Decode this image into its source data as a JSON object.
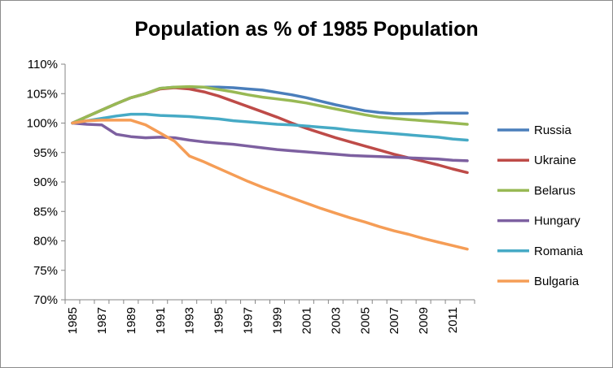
{
  "chart_data": {
    "type": "line",
    "title": "Population as % of 1985 Population",
    "xlabel": "",
    "ylabel": "",
    "x": [
      1985,
      1986,
      1987,
      1988,
      1989,
      1990,
      1991,
      1992,
      1993,
      1994,
      1995,
      1996,
      1997,
      1998,
      1999,
      2000,
      2001,
      2002,
      2003,
      2004,
      2005,
      2006,
      2007,
      2008,
      2009,
      2010,
      2011,
      2012
    ],
    "x_tick_labels": [
      "1985",
      "1987",
      "1989",
      "1991",
      "1993",
      "1995",
      "1997",
      "1999",
      "2001",
      "2003",
      "2005",
      "2007",
      "2009",
      "2011"
    ],
    "y_tick_labels": [
      "70%",
      "75%",
      "80%",
      "85%",
      "90%",
      "95%",
      "100%",
      "105%",
      "110%"
    ],
    "ylim": [
      70,
      110
    ],
    "y_unit": "%",
    "grid": "none",
    "legend_position": "right",
    "series": [
      {
        "name": "Russia",
        "color": "#4a7ebb",
        "values": [
          100,
          101.1,
          102.2,
          103.3,
          104.3,
          105.0,
          105.9,
          106.1,
          106.1,
          106.1,
          106.1,
          106.0,
          105.8,
          105.6,
          105.2,
          104.8,
          104.3,
          103.7,
          103.1,
          102.6,
          102.1,
          101.8,
          101.6,
          101.6,
          101.6,
          101.7,
          101.7,
          101.7
        ]
      },
      {
        "name": "Ukraine",
        "color": "#be4b48",
        "values": [
          100,
          101.1,
          102.2,
          103.3,
          104.3,
          105.0,
          105.8,
          106.0,
          105.8,
          105.3,
          104.6,
          103.7,
          102.8,
          101.9,
          101.0,
          100.0,
          99.1,
          98.3,
          97.5,
          96.8,
          96.1,
          95.4,
          94.7,
          94.1,
          93.5,
          92.9,
          92.2,
          91.6
        ]
      },
      {
        "name": "Belarus",
        "color": "#98b954",
        "values": [
          100,
          101.1,
          102.2,
          103.3,
          104.3,
          105.0,
          105.9,
          106.1,
          106.2,
          106.1,
          105.7,
          105.3,
          104.8,
          104.4,
          104.1,
          103.8,
          103.4,
          102.9,
          102.4,
          101.9,
          101.4,
          101.0,
          100.8,
          100.6,
          100.4,
          100.2,
          100.0,
          99.8
        ]
      },
      {
        "name": "Hungary",
        "color": "#7d60a0",
        "values": [
          100,
          99.8,
          99.7,
          98.1,
          97.7,
          97.5,
          97.6,
          97.5,
          97.1,
          96.8,
          96.6,
          96.4,
          96.1,
          95.8,
          95.5,
          95.3,
          95.1,
          94.9,
          94.7,
          94.5,
          94.4,
          94.3,
          94.2,
          94.1,
          94.0,
          93.9,
          93.7,
          93.6
        ]
      },
      {
        "name": "Romania",
        "color": "#46aac5",
        "values": [
          100,
          100.4,
          100.8,
          101.2,
          101.5,
          101.5,
          101.3,
          101.2,
          101.1,
          100.9,
          100.7,
          100.4,
          100.2,
          100.0,
          99.8,
          99.7,
          99.5,
          99.3,
          99.1,
          98.8,
          98.6,
          98.4,
          98.2,
          98.0,
          97.8,
          97.6,
          97.3,
          97.1
        ]
      },
      {
        "name": "Bulgaria",
        "color": "#f59d56",
        "values": [
          100,
          100.4,
          100.5,
          100.5,
          100.5,
          99.7,
          98.3,
          96.9,
          94.4,
          93.4,
          92.3,
          91.2,
          90.1,
          89.1,
          88.2,
          87.3,
          86.4,
          85.5,
          84.7,
          83.9,
          83.2,
          82.4,
          81.7,
          81.1,
          80.4,
          79.8,
          79.2,
          78.6
        ]
      }
    ]
  }
}
